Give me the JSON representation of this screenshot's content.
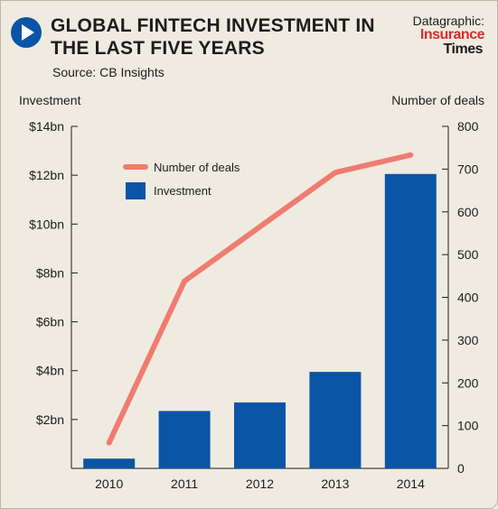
{
  "header": {
    "title": "GLOBAL FINTECH INVESTMENT IN THE LAST FIVE YEARS",
    "source": "Source: CB Insights",
    "credit_label": "Datagraphic:",
    "brand_line1": "Insurance",
    "brand_line2": "Times"
  },
  "colors": {
    "background": "#efebe1",
    "bar": "#0b55a6",
    "line": "#f07b70",
    "text": "#1d1d1b",
    "play_icon": "#0b55a6",
    "brand_red": "#d42e2e"
  },
  "chart_data": {
    "type": "bar",
    "categories": [
      "2010",
      "2011",
      "2012",
      "2013",
      "2014"
    ],
    "ylabel_left": "Investment",
    "ylabel_right": "Number of deals",
    "ylim_left": [
      0,
      14
    ],
    "ylim_right": [
      0,
      800
    ],
    "left_ticks": [
      "$2bn",
      "$4bn",
      "$6bn",
      "$8bn",
      "$10bn",
      "$12bn",
      "$14bn"
    ],
    "left_tick_values": [
      2,
      4,
      6,
      8,
      10,
      12,
      14
    ],
    "right_ticks": [
      "0",
      "100",
      "200",
      "300",
      "400",
      "500",
      "600",
      "700",
      "800"
    ],
    "right_tick_values": [
      0,
      100,
      200,
      300,
      400,
      500,
      600,
      700,
      800
    ],
    "series": [
      {
        "name": "Investment",
        "kind": "bar",
        "axis": "left",
        "unit": "$bn",
        "values": [
          0.4,
          2.35,
          2.7,
          3.95,
          12.05
        ]
      },
      {
        "name": "Number of deals",
        "kind": "line",
        "axis": "right",
        "values": [
          60,
          438,
          565,
          692,
          733
        ]
      }
    ],
    "legend": [
      "Number of deals",
      "Investment"
    ],
    "legend_position": "top-left",
    "grid": false
  }
}
